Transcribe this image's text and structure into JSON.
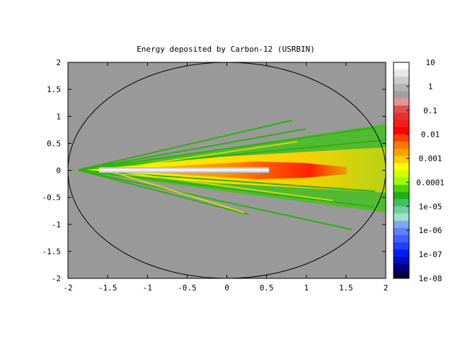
{
  "chart_data": {
    "type": "heatmap",
    "title": "Energy deposited by Carbon-12 (USRBIN)",
    "xlabel": "",
    "ylabel": "",
    "xlim": [
      -2,
      2
    ],
    "ylim": [
      -2,
      2
    ],
    "x_ticks": [
      "-2",
      "-1.5",
      "-1",
      "-0.5",
      "0",
      "0.5",
      "1",
      "1.5",
      "2"
    ],
    "y_ticks": [
      "2",
      "1.5",
      "1",
      "0.5",
      "0",
      "-0.5",
      "-1",
      "-1.5",
      "-2"
    ],
    "log_scale_colorbar": true,
    "colorbar_range": [
      1e-08,
      10
    ],
    "colorbar_ticks": [
      "10",
      "1",
      "0.1",
      "0.01",
      "0.001",
      "0.0001",
      "1e-05",
      "1e-06",
      "1e-07",
      "1e-08"
    ],
    "colorbar_colors": [
      "#ffffff",
      "#e6e6e6",
      "#cccccc",
      "#b4b4b4",
      "#a0a0a0",
      "#e59494",
      "#dd5050",
      "#e83030",
      "#f21d1d",
      "#ff0000",
      "#ff4000",
      "#ff7800",
      "#ffa000",
      "#ffd000",
      "#ffff00",
      "#d2ff00",
      "#9cff00",
      "#50d000",
      "#20b010",
      "#40c060",
      "#70d0a0",
      "#a0e0c8",
      "#80a8f0",
      "#6080ff",
      "#4060ff",
      "#2040ff",
      "#0020f0",
      "#0010c0",
      "#000080",
      "#000040"
    ],
    "background_color": "#999999",
    "region_boundary": "ellipse x^2/4 + y^2/4 = 1",
    "beam": {
      "x_start": -2,
      "x_end": 0.5,
      "y": 0
    },
    "grid": false
  }
}
